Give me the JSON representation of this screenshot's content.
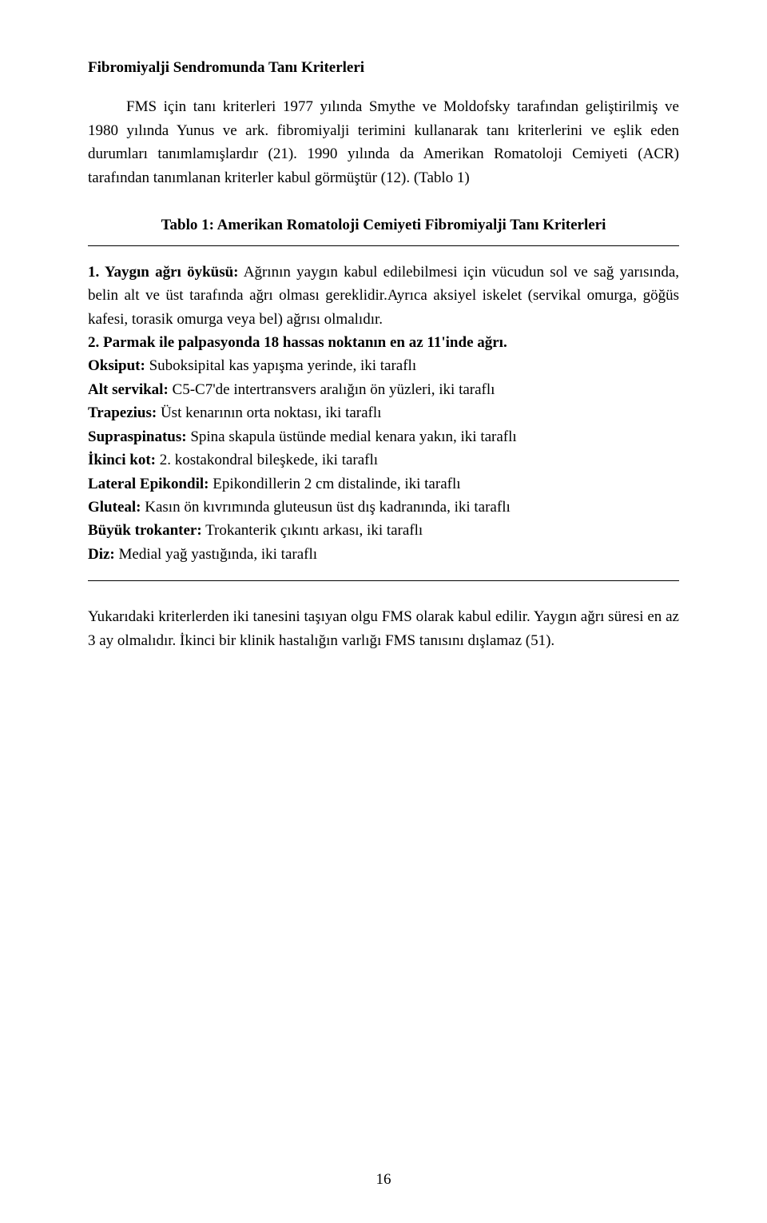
{
  "heading": "Fibromiyalji Sendromunda Tanı Kriterleri",
  "para1": "FMS için tanı kriterleri 1977 yılında Smythe ve Moldofsky tarafından geliştirilmiş ve 1980 yılında Yunus ve ark. fibromiyalji terimini kullanarak tanı kriterlerini ve eşlik eden durumları tanımlamışlardır (21). 1990 yılında da Amerikan Romatoloji Cemiyeti (ACR) tarafından tanımlanan kriterler kabul görmüştür (12). (Tablo 1)",
  "tableTitle": "Tablo 1: Amerikan Romatoloji Cemiyeti Fibromiyalji Tanı Kriterleri",
  "criteria": {
    "c1_label": "1. Yaygın ağrı öyküsü:",
    "c1_text": " Ağrının yaygın kabul edilebilmesi için vücudun sol ve sağ yarısında, belin alt ve üst tarafında ağrı olması gereklidir.Ayrıca aksiyel iskelet (servikal omurga, göğüs kafesi, torasik omurga veya bel) ağrısı olmalıdır.",
    "c2_label": "2. Parmak ile palpasyonda 18 hassas noktanın en az 11'inde ağrı.",
    "oksiput_label": "Oksiput:",
    "oksiput_text": " Suboksipital kas yapışma yerinde, iki taraflı",
    "alt_label": "Alt servikal:",
    "alt_text": " C5-C7'de intertransvers aralığın ön yüzleri, iki taraflı",
    "trap_label": "Trapezius:",
    "trap_text": " Üst kenarının orta noktası, iki taraflı",
    "supra_label": "Supraspinatus:",
    "supra_text": " Spina skapula üstünde medial kenara yakın, iki taraflı",
    "ikinci_label": "İkinci kot:",
    "ikinci_text": " 2. kostakondral bileşkede, iki taraflı",
    "lateral_label": "Lateral Epikondil:",
    "lateral_text": " Epikondillerin 2 cm distalinde, iki taraflı",
    "gluteal_label": "Gluteal:",
    "gluteal_text": " Kasın ön kıvrımında gluteusun üst dış kadranında, iki taraflı",
    "buyuk_label": "Büyük trokanter:",
    "buyuk_text": " Trokanterik çıkıntı arkası, iki taraflı",
    "diz_label": "Diz:",
    "diz_text": " Medial yağ yastığında, iki taraflı"
  },
  "para2": "Yukarıdaki kriterlerden iki tanesini taşıyan olgu FMS olarak kabul edilir. Yaygın ağrı süresi en az 3 ay olmalıdır. İkinci bir klinik hastalığın varlığı FMS tanısını dışlamaz (51).",
  "pageNumber": "16"
}
